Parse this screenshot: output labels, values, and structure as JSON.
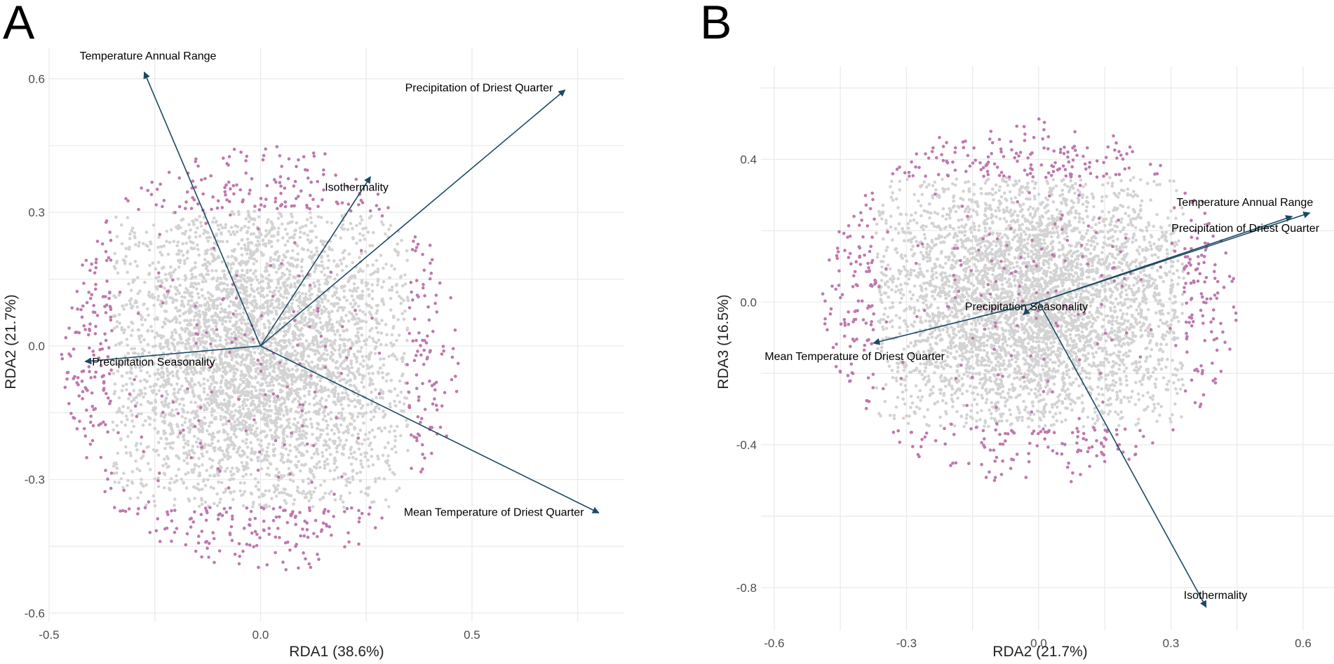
{
  "colors": {
    "background_points": "#d3d3d3",
    "outlier_points": "#be79ad",
    "arrow": "#1b4a63",
    "grid": "#ebebeb"
  },
  "chart_data": [
    {
      "panel_label": "A",
      "type": "scatter",
      "xlabel": "RDA1 (38.6%)",
      "ylabel": "RDA2 (21.7%)",
      "xlim": [
        -0.5,
        0.86
      ],
      "ylim": [
        -0.62,
        0.67
      ],
      "xticks": [
        -0.5,
        0.0,
        0.5
      ],
      "yticks": [
        -0.6,
        -0.3,
        0.0,
        0.3,
        0.6
      ],
      "xtick_labels": [
        "-0.5",
        "0.0",
        "0.5"
      ],
      "ytick_labels": [
        "-0.6",
        "-0.3",
        "0.0",
        "0.3",
        "0.6"
      ],
      "grid": true,
      "point_cloud": {
        "center": [
          0.0,
          -0.03
        ],
        "spread": [
          0.2,
          0.19
        ],
        "n_points": 5200,
        "outlier_fraction": 0.1
      },
      "vectors": [
        {
          "label": "Temperature Annual Range",
          "x": -0.275,
          "y": 0.615
        },
        {
          "label": "Precipitation of Driest Quarter",
          "x": 0.72,
          "y": 0.575
        },
        {
          "label": "Isothermality",
          "x": 0.26,
          "y": 0.38
        },
        {
          "label": "Precipitation Seasonality",
          "x": -0.415,
          "y": -0.035
        },
        {
          "label": "Mean Temperature of Driest Quarter",
          "x": 0.8,
          "y": -0.375
        }
      ]
    },
    {
      "panel_label": "B",
      "type": "scatter",
      "xlabel": "RDA2 (21.7%)",
      "ylabel": "RDA3 (16.5%)",
      "xlim": [
        -0.63,
        0.67
      ],
      "ylim": [
        -0.92,
        0.66
      ],
      "xticks": [
        -0.6,
        -0.3,
        0.0,
        0.3,
        0.6
      ],
      "yticks": [
        -0.8,
        -0.4,
        0.0,
        0.4
      ],
      "xtick_labels": [
        "-0.6",
        "-0.3",
        "0.0",
        "0.3",
        "0.6"
      ],
      "ytick_labels": [
        "-0.8",
        "-0.4",
        "0.0",
        "0.4"
      ],
      "grid": true,
      "point_cloud": {
        "center": [
          -0.02,
          0.0
        ],
        "spread": [
          0.2,
          0.2
        ],
        "n_points": 5200,
        "outlier_fraction": 0.1
      },
      "vectors": [
        {
          "label": "Temperature Annual Range",
          "x": 0.615,
          "y": 0.25
        },
        {
          "label": "Precipitation of Driest Quarter",
          "x": 0.575,
          "y": 0.24
        },
        {
          "label": "Precipitation Seasonality",
          "x": -0.035,
          "y": -0.035
        },
        {
          "label": "Mean Temperature of Driest Quarter",
          "x": -0.375,
          "y": -0.115
        },
        {
          "label": "Isothermality",
          "x": 0.38,
          "y": -0.855
        }
      ]
    }
  ]
}
